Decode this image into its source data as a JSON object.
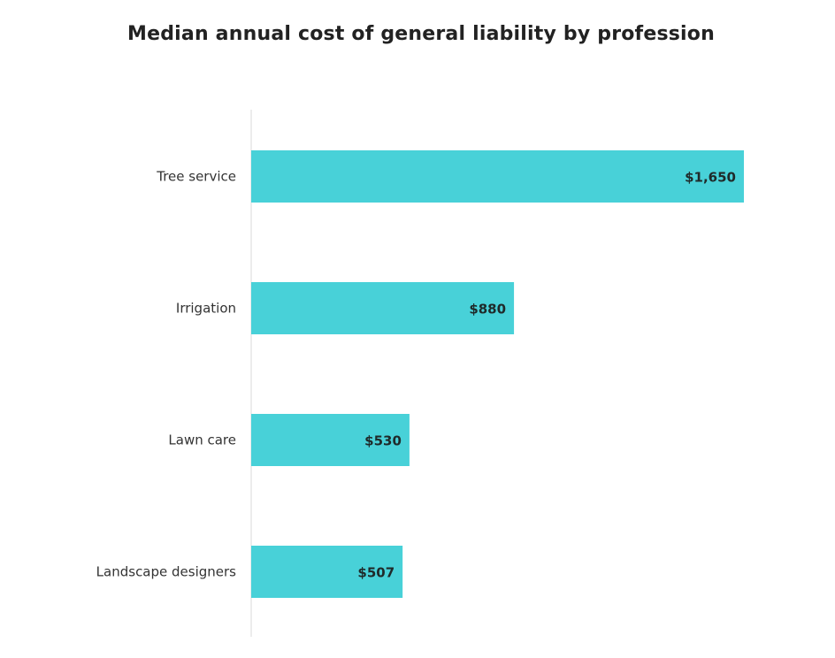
{
  "chart_data": {
    "type": "bar",
    "orientation": "horizontal",
    "title": "Median annual cost of general liability by profession",
    "categories": [
      "Tree service",
      "Irrigation",
      "Lawn care",
      "Landscape designers"
    ],
    "values": [
      1650,
      880,
      530,
      507
    ],
    "data_labels": [
      "$1,650",
      "$880",
      "$530",
      "$507"
    ],
    "xlabel": "",
    "ylabel": "",
    "xlim": [
      0,
      1650
    ],
    "grid": false,
    "legend": "none",
    "colors": {
      "bar": "#48D1D8",
      "axis": "#d9d9d9"
    }
  }
}
